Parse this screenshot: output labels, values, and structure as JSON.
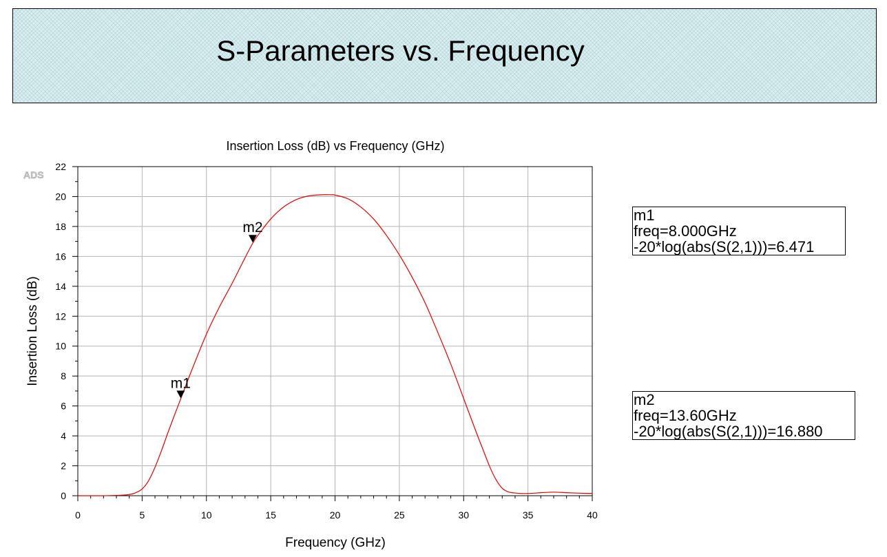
{
  "page_title": "S-Parameters vs. Frequency",
  "watermark": "ADS",
  "chart_data": {
    "type": "line",
    "title": "Insertion Loss (dB) vs Frequency (GHz)",
    "xlabel": "Frequency (GHz)",
    "ylabel": "Insertion Loss (dB)",
    "xlim": [
      0,
      40
    ],
    "ylim": [
      0,
      22
    ],
    "xticks": [
      0,
      5,
      10,
      15,
      20,
      25,
      30,
      35,
      40
    ],
    "yticks": [
      0,
      2,
      4,
      6,
      8,
      10,
      12,
      14,
      16,
      18,
      20,
      22
    ],
    "grid": true,
    "series": [
      {
        "color": "#e00000",
        "x": [
          0,
          1,
          2,
          3,
          3.5,
          4,
          4.5,
          5,
          5.5,
          6,
          6.5,
          7,
          7.5,
          8,
          8.5,
          9,
          10,
          11,
          12,
          13,
          13.6,
          14,
          15,
          16,
          17,
          18,
          19,
          19.7,
          20,
          21,
          22,
          23,
          24,
          25,
          26,
          27,
          28,
          29,
          30,
          31,
          31.5,
          32,
          32.5,
          33,
          33.5,
          34,
          34.5,
          35,
          35.5,
          36,
          37,
          38,
          39,
          40
        ],
        "y": [
          0.0,
          0.0,
          0.0,
          0.02,
          0.04,
          0.08,
          0.2,
          0.45,
          1.0,
          1.9,
          3.0,
          4.2,
          5.35,
          6.471,
          7.6,
          8.7,
          10.8,
          12.6,
          14.2,
          15.9,
          16.88,
          17.4,
          18.5,
          19.3,
          19.8,
          20.05,
          20.12,
          20.12,
          20.1,
          19.85,
          19.3,
          18.5,
          17.4,
          16.1,
          14.6,
          12.9,
          10.9,
          8.8,
          6.5,
          4.2,
          3.1,
          2.0,
          1.1,
          0.5,
          0.25,
          0.18,
          0.15,
          0.15,
          0.17,
          0.2,
          0.24,
          0.2,
          0.17,
          0.15
        ]
      }
    ],
    "markers": [
      {
        "name": "m1",
        "x": 8.0,
        "y": 6.471,
        "lines": [
          "m1",
          "freq=8.000GHz",
          "-20*log(abs(S(2,1)))=6.471"
        ]
      },
      {
        "name": "m2",
        "x": 13.6,
        "y": 16.88,
        "lines": [
          "m2",
          "freq=13.60GHz",
          "-20*log(abs(S(2,1)))=16.880"
        ]
      }
    ]
  }
}
